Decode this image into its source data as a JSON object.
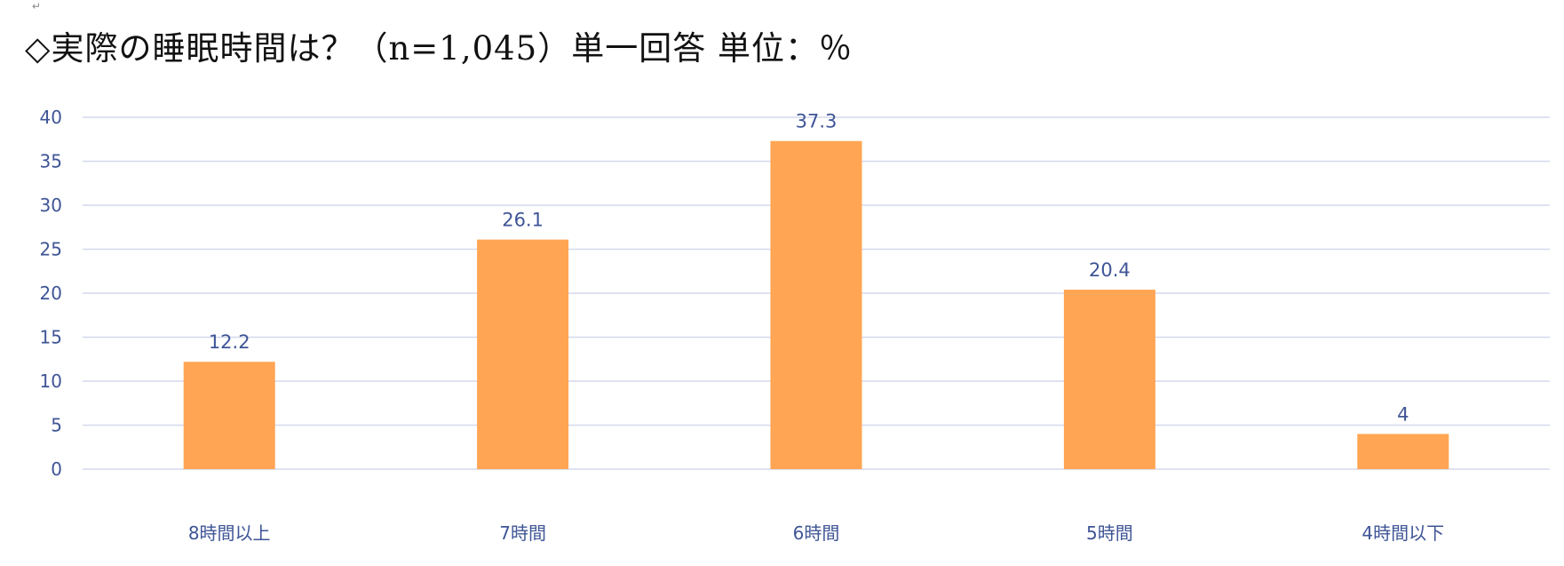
{
  "header": {
    "title": "◇実際の睡眠時間は？（n=1,045）単一回答 単位：％"
  },
  "colors": {
    "bar": "#ffa553",
    "text": "#3f5596",
    "grid": "#d3d9ec"
  },
  "chart_data": {
    "type": "bar",
    "title": "◇実際の睡眠時間は？（n=1,045）単一回答 単位：％",
    "categories": [
      "8時間以上",
      "7時間",
      "6時間",
      "5時間",
      "4時間以下"
    ],
    "values": [
      12.2,
      26.1,
      37.3,
      20.4,
      4
    ],
    "ylim": [
      0,
      40
    ],
    "yticks": [
      0,
      5,
      10,
      15,
      20,
      25,
      30,
      35,
      40
    ],
    "grid": true,
    "legend": "none",
    "xlabel": "",
    "ylabel": ""
  }
}
